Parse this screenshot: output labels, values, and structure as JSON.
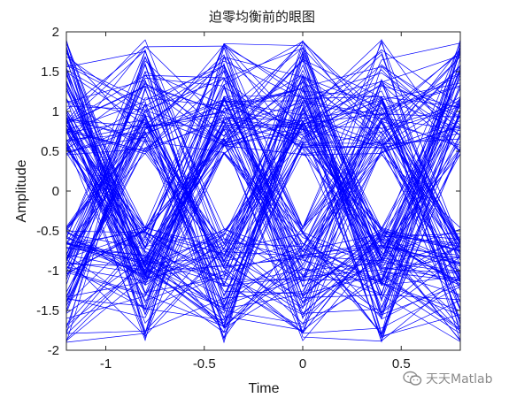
{
  "chart_data": {
    "type": "line",
    "title": "迫零均衡前的眼图",
    "xlabel": "Time",
    "ylabel": "Amplitude",
    "xlim": [
      -1.2,
      0.8
    ],
    "ylim": [
      -2,
      2
    ],
    "xticks": [
      -1,
      -0.5,
      0,
      0.5
    ],
    "xtick_labels": [
      "-1",
      "-0.5",
      "0",
      "0.5"
    ],
    "yticks": [
      -2,
      -1.5,
      -1,
      -0.5,
      0,
      0.5,
      1,
      1.5,
      2
    ],
    "ytick_labels": [
      "-2",
      "-1.5",
      "-1",
      "-0.5",
      "0",
      "0.5",
      "1",
      "1.5",
      "2"
    ],
    "symbol_instants": [
      -1.2,
      -0.8,
      -0.4,
      0,
      0.4,
      0.8
    ],
    "representative_traces": [
      {
        "x": [
          -1.2,
          -0.8,
          -0.4,
          0,
          0.4,
          0.8
        ],
        "y": [
          1.5,
          -1.5,
          1.6,
          -1.6,
          1.4,
          -1.5
        ]
      },
      {
        "x": [
          -1.2,
          -0.8,
          -0.4,
          0,
          0.4,
          0.8
        ],
        "y": [
          -1.4,
          1.6,
          -1.4,
          1.7,
          -1.6,
          1.5
        ]
      },
      {
        "x": [
          -1.2,
          -0.8,
          -0.4,
          0,
          0.4,
          0.8
        ],
        "y": [
          0.9,
          0.8,
          1.0,
          -1.0,
          -0.9,
          1.1
        ]
      },
      {
        "x": [
          -1.2,
          -0.8,
          -0.4,
          0,
          0.4,
          0.8
        ],
        "y": [
          -0.8,
          -1.0,
          0.9,
          0.7,
          -0.6,
          -0.9
        ]
      },
      {
        "x": [
          -1.2,
          -0.8,
          -0.4,
          0,
          0.4,
          0.8
        ],
        "y": [
          1.9,
          -1.8,
          1.3,
          -1.2,
          1.9,
          -1.8
        ]
      },
      {
        "x": [
          -1.2,
          -0.8,
          -0.4,
          0,
          0.4,
          0.8
        ],
        "y": [
          -1.9,
          1.3,
          -1.9,
          1.4,
          -1.3,
          1.9
        ]
      }
    ],
    "trace_color": "#0000ff",
    "grid": false,
    "legend": "none"
  },
  "watermark": {
    "text": "天天Matlab",
    "icon": "wechat-icon",
    "color": "#8a8a8a"
  }
}
